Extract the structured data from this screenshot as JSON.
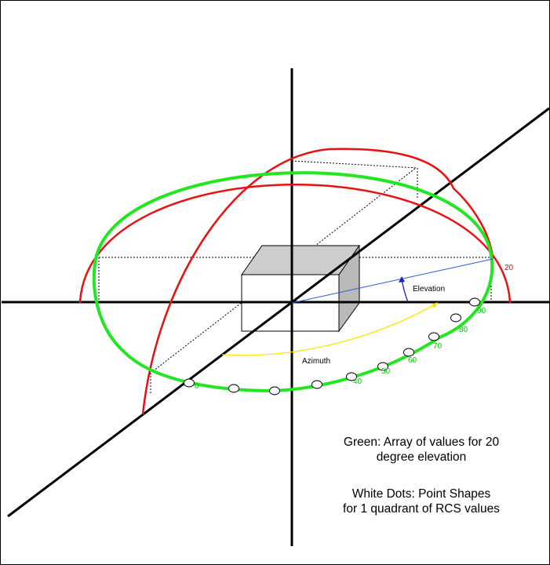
{
  "labels": {
    "elevation": "Elevation",
    "azimuth": "Azimuth",
    "elevation_value": "20"
  },
  "rcs_ticks": [
    {
      "text": "90"
    },
    {
      "text": "80"
    },
    {
      "text": "70"
    },
    {
      "text": "60"
    },
    {
      "text": "50"
    },
    {
      "text": "40"
    },
    {
      "text": "0"
    }
  ],
  "notes": {
    "green_line1": "Green:  Array of values for  20",
    "green_line2": "degree elevation",
    "dots_line1": "White Dots:  Point Shapes",
    "dots_line2": "for 1 quadrant of RCS values"
  },
  "colors": {
    "green_curve": "#22e622",
    "red_curve": "#e81010",
    "elevation_vector": "#2f5bd8",
    "elevation_arc": "#1d1dd8",
    "azimuth_arc": "#ffe600",
    "cube_front": "#ffffff",
    "cube_top": "#cdcdcd",
    "cube_side": "#b9b9b9"
  }
}
